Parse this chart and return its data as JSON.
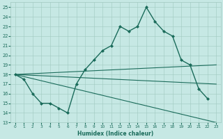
{
  "xlabel": "Humidex (Indice chaleur)",
  "background_color": "#c6e8e4",
  "line_color": "#1a6b5a",
  "grid_color": "#a0c8c0",
  "ylim": [
    13,
    25.5
  ],
  "xlim": [
    -0.5,
    23.5
  ],
  "yticks": [
    13,
    14,
    15,
    16,
    17,
    18,
    19,
    20,
    21,
    22,
    23,
    24,
    25
  ],
  "xticks": [
    0,
    1,
    2,
    3,
    4,
    5,
    6,
    7,
    8,
    9,
    10,
    11,
    12,
    13,
    14,
    15,
    16,
    17,
    18,
    19,
    20,
    21,
    22,
    23
  ],
  "series": [
    {
      "x": [
        0,
        1,
        2,
        3,
        4,
        5,
        6,
        7,
        8,
        9,
        10,
        11,
        12,
        13,
        14,
        15,
        16,
        17,
        18,
        19,
        20,
        21,
        22
      ],
      "y": [
        18,
        17.5,
        16,
        15,
        15,
        14.5,
        14,
        17,
        18.5,
        19.5,
        20.5,
        21,
        23,
        22.5,
        23,
        25,
        23.5,
        22.5,
        22,
        19.5,
        19,
        16.5,
        15.5
      ],
      "marker": "D",
      "markersize": 2.0,
      "linewidth": 1.0
    },
    {
      "x": [
        0,
        23
      ],
      "y": [
        18,
        19
      ],
      "marker": null,
      "markersize": 0,
      "linewidth": 0.8
    },
    {
      "x": [
        0,
        23
      ],
      "y": [
        18,
        17
      ],
      "marker": null,
      "markersize": 0,
      "linewidth": 0.8
    },
    {
      "x": [
        0,
        23
      ],
      "y": [
        18,
        13
      ],
      "marker": null,
      "markersize": 0,
      "linewidth": 0.8
    }
  ]
}
